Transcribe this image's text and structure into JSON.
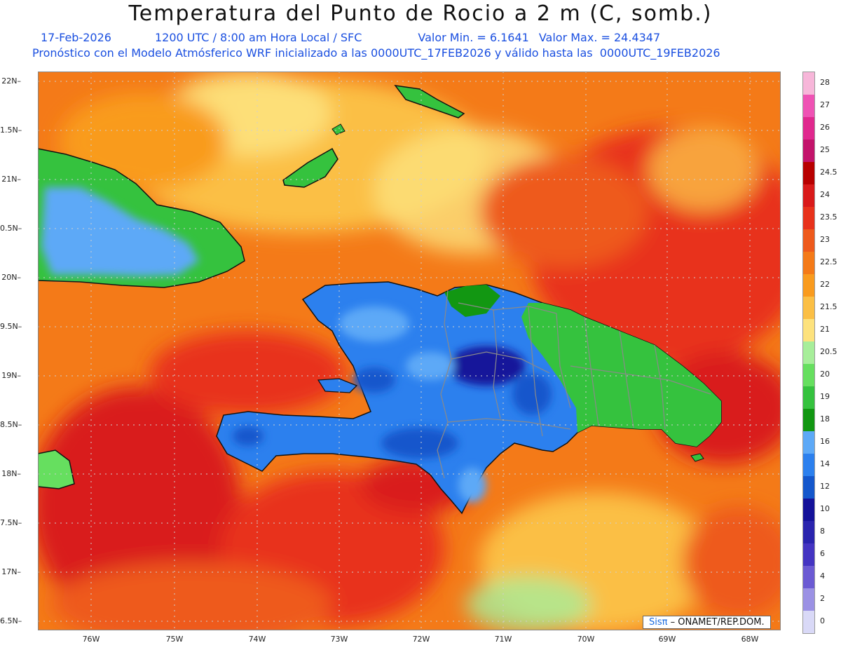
{
  "header": {
    "title": "Temperatura del Punto de Rocio a 2 m (C, somb.)",
    "date": "17-Feb-2026",
    "time": "1200 UTC / 8:00 am Hora Local / SFC",
    "min": "Valor Min. = 6.1641",
    "max": "Valor Max. = 24.4347",
    "description": "Pronóstico con el Modelo Atmósferico WRF inicializado a las 0000UTC_17FEB2026 y válido hasta las  0000UTC_19FEB2026"
  },
  "axes": {
    "lat_labels": [
      "22N",
      "1.5N",
      "21N",
      "0.5N",
      "20N",
      "9.5N",
      "19N",
      "8.5N",
      "18N",
      "7.5N",
      "17N",
      "6.5N"
    ],
    "lon_labels": [
      "76W",
      "75W",
      "74W",
      "73W",
      "72W",
      "71W",
      "70W",
      "69W",
      "68W"
    ]
  },
  "legend": {
    "values": [
      "28",
      "27",
      "26",
      "25",
      "24.5",
      "24",
      "23.5",
      "23",
      "22.5",
      "22",
      "21.5",
      "21",
      "20.5",
      "20",
      "19",
      "18",
      "16",
      "14",
      "12",
      "10",
      "8",
      "6",
      "4",
      "2",
      "0"
    ],
    "colors": [
      "#f7b6d9",
      "#ef52b4",
      "#e0288e",
      "#c3136b",
      "#b80000",
      "#d91a1a",
      "#e8321b",
      "#ee5a1c",
      "#f47a18",
      "#f99b1e",
      "#fbbf45",
      "#fde27d",
      "#a7ee9a",
      "#66df5f",
      "#35c23e",
      "#129712",
      "#5da9f7",
      "#2c80ee",
      "#1457cc",
      "#14129a",
      "#2a24ae",
      "#4434c2",
      "#6b5ad3",
      "#9b91e4",
      "#d9d9f7"
    ]
  },
  "credit": {
    "brand": "Sisπ",
    "org": "– ONAMET/REP.DOM."
  }
}
